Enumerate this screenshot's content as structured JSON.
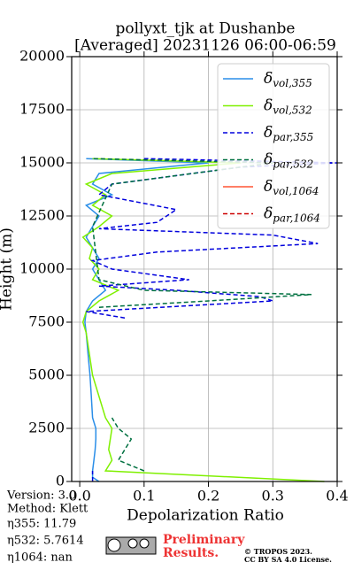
{
  "chart_data": {
    "type": "profile",
    "title": "pollyxt_tjk at Dushanbe",
    "subtitle": "[Averaged] 20231126 06:00-06:59",
    "xlabel": "Depolarization Ratio",
    "ylabel": "Height (m)",
    "xlim": [
      -0.0125,
      0.4
    ],
    "ylim": [
      0,
      20000
    ],
    "xticks": [
      {
        "value": 0,
        "label": "0.0"
      },
      0.1,
      0.2,
      0.3,
      0.4
    ],
    "yticks": [
      0,
      2500,
      5000,
      7500,
      10000,
      12500,
      15000,
      17500,
      20000
    ],
    "grid": true,
    "legend": "upper right",
    "series": [
      {
        "name": "δvol,355",
        "color": "#2a8ee8",
        "dash": "solid",
        "x": [
          0.03,
          0.02,
          0.02,
          0.022,
          0.024,
          0.025,
          0.025,
          0.02,
          0.018,
          0.016,
          0.013,
          0.01,
          0.008,
          0.01,
          0.02,
          0.04,
          0.03,
          0.02,
          0.03,
          0.02,
          0.01,
          0.02,
          0.03,
          0.01,
          0.05,
          0.02,
          0.03,
          0.2,
          0.01
        ],
        "y": [
          0,
          200,
          500,
          1000,
          1500,
          2000,
          2500,
          3000,
          4000,
          5000,
          6000,
          7000,
          7500,
          8000,
          8500,
          9000,
          9500,
          10000,
          10500,
          11000,
          11500,
          12000,
          12500,
          13000,
          13500,
          14000,
          14500,
          15000,
          15200
        ]
      },
      {
        "name": "δvol,532",
        "color": "#7ff000",
        "dash": "solid",
        "x": [
          0.38,
          0.04,
          0.05,
          0.045,
          0.05,
          0.04,
          0.03,
          0.02,
          0.015,
          0.01,
          0.005,
          0.01,
          0.03,
          0.06,
          0.02,
          0.03,
          0.015,
          0.02,
          0.005,
          0.03,
          0.05,
          0.02,
          0.04,
          0.01,
          0.05,
          0.25,
          0.02
        ],
        "y": [
          0,
          500,
          1000,
          1500,
          2500,
          3000,
          4000,
          5000,
          6000,
          7000,
          7500,
          8000,
          8500,
          9000,
          9500,
          10000,
          10500,
          11000,
          11500,
          12000,
          12500,
          13000,
          13500,
          14000,
          14500,
          15000,
          15200
        ]
      },
      {
        "name": "δpar,355",
        "color": "#0000dd",
        "dash": "dashed",
        "x": [
          0.02,
          0.02,
          null,
          0.07,
          0.01,
          0.3,
          0.28,
          0.15,
          0.03,
          0.17,
          0.05,
          0.02,
          0.12,
          0.37,
          0.3,
          0.03,
          0.12,
          0.15,
          0.03,
          0.05,
          0.25,
          0.4,
          0.1
        ],
        "y": [
          0,
          500,
          1000,
          7700,
          8000,
          8500,
          8700,
          9000,
          9200,
          9500,
          10000,
          10400,
          10800,
          11200,
          11600,
          11900,
          12200,
          12800,
          13500,
          14000,
          14800,
          15000,
          15200
        ]
      },
      {
        "name": "δpar,532",
        "color": "#007040",
        "dash": "dashed",
        "x": [
          0.1,
          0.06,
          0.07,
          0.08,
          0.06,
          0.05,
          null,
          0.03,
          0.2,
          0.36,
          0.1,
          0.03,
          0.02,
          0.05,
          0.3,
          0.02
        ],
        "y": [
          500,
          1000,
          1500,
          2000,
          2500,
          3000,
          3500,
          8200,
          8500,
          8800,
          9000,
          9500,
          12000,
          14000,
          15000,
          15200
        ]
      },
      {
        "name": "δvol,1064",
        "color": "#ff5533",
        "dash": "solid",
        "x": [],
        "y": []
      },
      {
        "name": "δpar,1064",
        "color": "#cc0000",
        "dash": "dashed",
        "x": [],
        "y": []
      }
    ]
  },
  "info": {
    "version": "Version: 3.0",
    "method": "Method: Klett",
    "eta355": "η355:  11.79",
    "eta532": "η532: 5.7614",
    "eta1064": "η1064:    nan"
  },
  "footer": {
    "preliminary": "Preliminary",
    "results": "Results.",
    "copyright": "© TROPOS 2023.",
    "license": "CC BY SA 4.0 License."
  }
}
